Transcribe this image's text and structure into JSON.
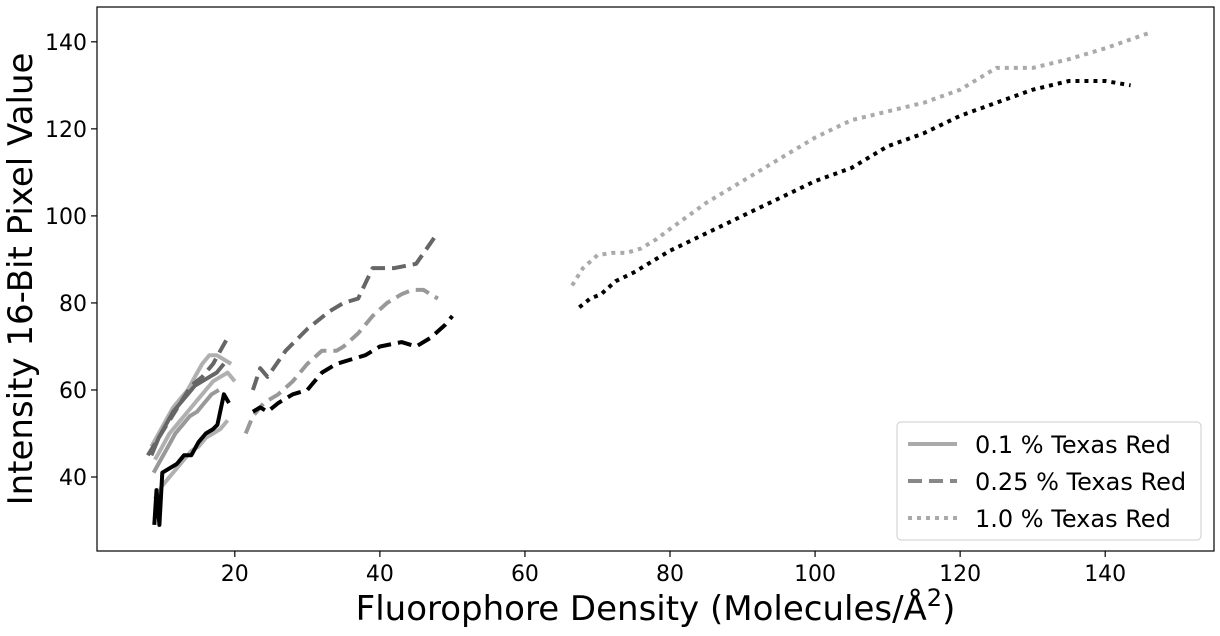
{
  "chart_data": {
    "type": "line",
    "xlabel": "Fluorophore Density (Molecules/Å",
    "xlabel_sup": "2",
    "xlabel_close": ")",
    "ylabel": "Intensity 16-Bit Pixel Value",
    "xlim": [
      1,
      155
    ],
    "ylim": [
      23,
      148
    ],
    "xticks": [
      20,
      40,
      60,
      80,
      100,
      120,
      140
    ],
    "yticks": [
      40,
      60,
      80,
      100,
      120,
      140
    ],
    "grid": false,
    "legend_position": "bottom-right",
    "legend": [
      {
        "label": "0.1 % Texas Red",
        "dash": "solid",
        "color": "#aaaaaa"
      },
      {
        "label": "0.25 % Texas Red",
        "dash": "dashed",
        "color": "#888888"
      },
      {
        "label": "1.0 % Texas Red",
        "dash": "dotted",
        "color": "#aaaaaa"
      }
    ],
    "series": [
      {
        "group": "0.1 % Texas Red",
        "dash": "solid",
        "color": "#b0b0b0",
        "x": [
          8.5,
          9.5,
          10.5,
          11.5,
          12.5,
          13.5,
          14.5,
          15.5,
          16.5,
          17.5,
          18.5,
          19.5
        ],
        "y": [
          47,
          50,
          53,
          56,
          58,
          60,
          63,
          66,
          68,
          68,
          67,
          66
        ]
      },
      {
        "group": "0.1 % Texas Red",
        "dash": "solid",
        "color": "#b0b0b0",
        "x": [
          9.0,
          10.0,
          11.0,
          12.0,
          13.0,
          14.0,
          15.0,
          16.0,
          17.0,
          18.0,
          19.0,
          20.0
        ],
        "y": [
          44,
          47,
          50,
          52,
          54,
          56,
          58,
          60,
          62,
          63,
          64,
          62
        ]
      },
      {
        "group": "0.1 % Texas Red",
        "dash": "solid",
        "color": "#b0b0b0",
        "x": [
          9.0,
          10.0,
          11.0,
          12.0,
          13.0,
          14.0,
          15.0,
          16.0,
          17.0,
          18.0,
          19.0
        ],
        "y": [
          35,
          38,
          40,
          42,
          44,
          46,
          47,
          49,
          50,
          51,
          53
        ]
      },
      {
        "group": "0.1 % Texas Red",
        "dash": "solid",
        "color": "#999999",
        "x": [
          8.8,
          9.8,
          10.8,
          11.8,
          12.8,
          13.8,
          14.8,
          15.8,
          16.8,
          17.8
        ],
        "y": [
          41,
          44,
          47,
          50,
          52,
          54,
          55,
          57,
          59,
          60
        ]
      },
      {
        "group": "0.1 % Texas Red",
        "dash": "solid",
        "color": "#666666",
        "x": [
          8.5,
          9.5,
          10.5,
          11.5,
          12.5,
          13.5,
          14.5,
          15.5,
          16.5,
          17.5,
          18.5
        ],
        "y": [
          45,
          49,
          52,
          55,
          57,
          59,
          61,
          62,
          63,
          64,
          66
        ]
      },
      {
        "group": "0.1 % Texas Red",
        "dash": "solid",
        "color": "#000000",
        "x": [
          8.9,
          9.2,
          9.6,
          10.0,
          11.0,
          12.0,
          13.0,
          14.0,
          15.0,
          16.0,
          17.0,
          17.6,
          18.5,
          19.2
        ],
        "y": [
          29,
          37,
          29,
          41,
          42,
          43,
          45,
          45,
          48,
          50,
          51,
          52,
          59,
          57
        ]
      },
      {
        "group": "0.25 % Texas Red",
        "dash": "dashed",
        "color": "#666666",
        "x": [
          8.0,
          9.5,
          11.0,
          12.5,
          14.0,
          15.5,
          17.0,
          18.0,
          19.0
        ],
        "y": [
          45,
          49,
          53,
          57,
          61,
          63,
          66,
          69,
          72
        ]
      },
      {
        "group": "0.25 % Texas Red",
        "dash": "dashed",
        "color": "#666666",
        "x": [
          22.5,
          23.5,
          24.5,
          27,
          30,
          33,
          35,
          37,
          39,
          42,
          45,
          47.5
        ],
        "y": [
          60,
          65,
          63,
          69,
          74,
          78,
          80,
          81,
          88,
          88,
          89,
          95
        ]
      },
      {
        "group": "0.25 % Texas Red",
        "dash": "dashed",
        "color": "#999999",
        "x": [
          21.5,
          22.5,
          24,
          26,
          28,
          30,
          32,
          34,
          35,
          37,
          39,
          41,
          43,
          44.5,
          46,
          48
        ],
        "y": [
          50,
          54,
          57,
          59,
          62,
          66,
          69,
          69,
          70,
          73,
          77,
          80,
          82,
          83,
          83,
          81
        ]
      },
      {
        "group": "0.25 % Texas Red",
        "dash": "dashed",
        "color": "#000000",
        "x": [
          22.5,
          23.5,
          24.5,
          26,
          28,
          30,
          32,
          34,
          36,
          38,
          40,
          43,
          45,
          47,
          49,
          50
        ],
        "y": [
          55,
          56,
          55,
          57,
          59,
          60,
          64,
          66,
          67,
          68,
          70,
          71,
          70,
          72,
          75,
          77
        ]
      },
      {
        "group": "1.0 % Texas Red",
        "dash": "dotted",
        "color": "#aaaaaa",
        "x": [
          66.5,
          68,
          70,
          72,
          74,
          76,
          78,
          80,
          85,
          90,
          95,
          100,
          105,
          110,
          115,
          120,
          125,
          130,
          135,
          140,
          146
        ],
        "y": [
          84,
          88,
          91,
          91.5,
          91.5,
          92.5,
          94.5,
          97,
          103,
          108,
          113,
          118,
          122,
          124,
          126,
          129,
          134,
          134,
          136,
          138.5,
          142
        ]
      },
      {
        "group": "1.0 % Texas Red",
        "dash": "dotted",
        "color": "#000000",
        "x": [
          67.5,
          69,
          70.5,
          72.5,
          75,
          80,
          85,
          90,
          95,
          100,
          105,
          110,
          115,
          120,
          125,
          130,
          135,
          140,
          143.5
        ],
        "y": [
          79,
          81,
          82,
          85,
          87,
          92,
          96,
          100,
          104,
          108,
          111,
          116,
          119,
          123,
          126,
          129,
          131,
          131,
          130
        ]
      }
    ]
  }
}
